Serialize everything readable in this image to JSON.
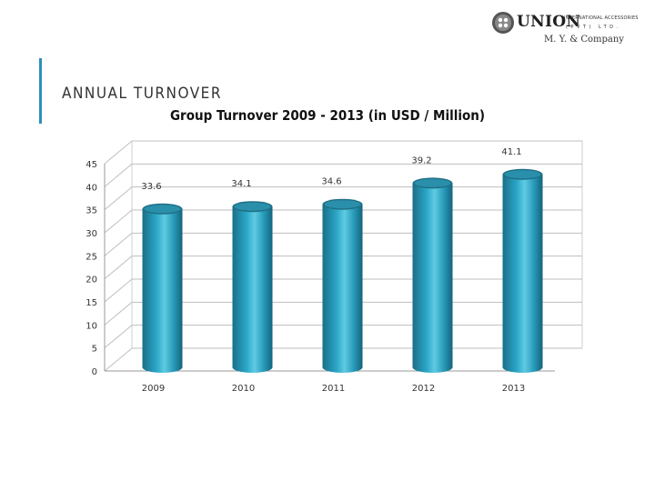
{
  "slide": {
    "title": "ANNUAL TURNOVER"
  },
  "logo": {
    "name": "UNION",
    "tagline_1": "INTERNATIONAL ACCESSORIES",
    "tagline_2": "(PVT) LTD.",
    "subtitle": "M. Y. & Company"
  },
  "colors": {
    "accent": "#2f8fb8",
    "bar_side": "#1c7d98",
    "bar_front": "#2aa3c4",
    "bar_highlight": "#5cc8e0",
    "bar_top": "#1f6f86",
    "grid": "#bfbfbf",
    "text": "#333333"
  },
  "chart_data": {
    "type": "bar",
    "title": "Group Turnover 2009 - 2013 (in USD / Million)",
    "categories": [
      "2009",
      "2010",
      "2011",
      "2012",
      "2013"
    ],
    "values": [
      33.6,
      34.1,
      34.6,
      39.2,
      41.1
    ],
    "data_labels": [
      "33.6",
      "34.1",
      "34.6",
      "39.2",
      "41.1"
    ],
    "xlabel": "",
    "ylabel": "",
    "ylim": [
      0,
      45
    ],
    "yticks": [
      "0",
      "5",
      "10",
      "15",
      "20",
      "25",
      "30",
      "35",
      "40",
      "45"
    ],
    "grid": true,
    "style": "3d-cylinder"
  }
}
